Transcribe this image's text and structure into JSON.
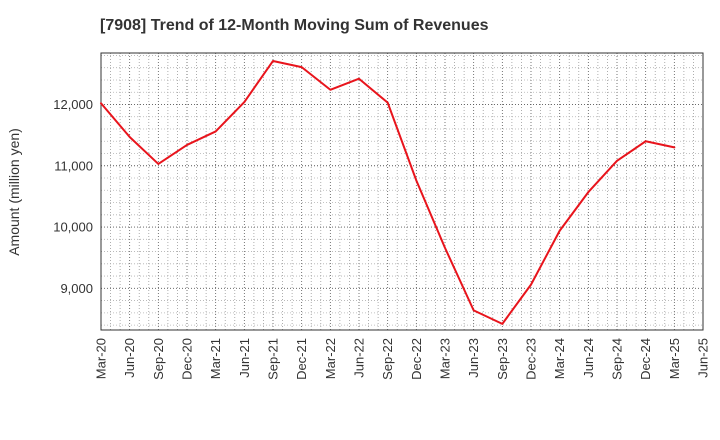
{
  "chart_data": {
    "type": "line",
    "title": "[7908]  Trend of 12-Month Moving Sum of Revenues",
    "ylabel": "Amount (million yen)",
    "xlabel": "",
    "x": [
      "Mar-20",
      "Jun-20",
      "Sep-20",
      "Dec-20",
      "Mar-21",
      "Jun-21",
      "Sep-21",
      "Dec-21",
      "Mar-22",
      "Jun-22",
      "Sep-22",
      "Dec-22",
      "Mar-23",
      "Jun-23",
      "Sep-23",
      "Dec-23",
      "Mar-24",
      "Jun-24",
      "Sep-24",
      "Dec-24",
      "Mar-25",
      "Jun-25"
    ],
    "xticks": [
      "Mar-20",
      "Jun-20",
      "Sep-20",
      "Dec-20",
      "Mar-21",
      "Jun-21",
      "Sep-21",
      "Dec-21",
      "Mar-22",
      "Jun-22",
      "Sep-22",
      "Dec-22",
      "Mar-23",
      "Jun-23",
      "Sep-23",
      "Dec-23",
      "Mar-24",
      "Jun-24",
      "Sep-24",
      "Dec-24",
      "Mar-25",
      "Jun-25"
    ],
    "series": [
      {
        "values": [
          12020,
          11470,
          11030,
          11340,
          11560,
          12040,
          12710,
          12610,
          12240,
          12420,
          12030,
          10760,
          9660,
          8640,
          8420,
          9060,
          9940,
          10570,
          11080,
          11400,
          11300,
          null
        ],
        "color": "#e8141c"
      }
    ],
    "yticks": [
      9000,
      10000,
      11000,
      12000
    ],
    "ytick_labels": [
      "9,000",
      "10,000",
      "11,000",
      "12,000"
    ],
    "ylim": [
      8320,
      12840
    ],
    "grid": true,
    "legend": "none"
  }
}
